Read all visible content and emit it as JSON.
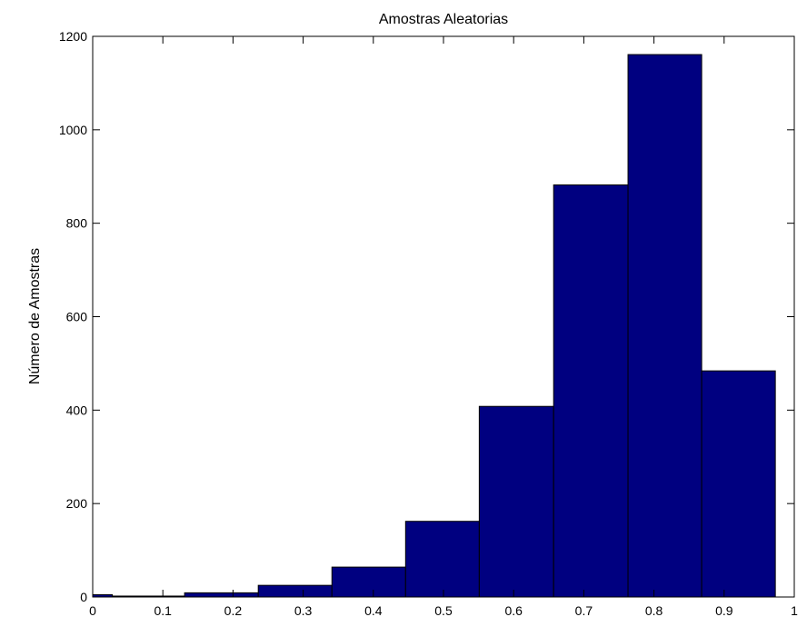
{
  "chart_data": {
    "type": "bar",
    "title": "Amostras Aleatorias",
    "xlabel": "",
    "ylabel": "Número de Amostras",
    "xlim": [
      0,
      1
    ],
    "ylim": [
      0,
      1200
    ],
    "x_ticks": [
      "0",
      "0.1",
      "0.2",
      "0.3",
      "0.4",
      "0.5",
      "0.6",
      "0.7",
      "0.8",
      "0.9",
      "1"
    ],
    "y_ticks": [
      "0",
      "200",
      "400",
      "600",
      "800",
      "1000",
      "1200"
    ],
    "grid": false,
    "legend": "none",
    "bar_color": "#000080",
    "bins": [
      {
        "start": 0.0,
        "end": 0.028,
        "value": 5
      },
      {
        "start": 0.028,
        "end": 0.131,
        "value": 2
      },
      {
        "start": 0.131,
        "end": 0.236,
        "value": 9
      },
      {
        "start": 0.236,
        "end": 0.341,
        "value": 25
      },
      {
        "start": 0.341,
        "end": 0.446,
        "value": 64
      },
      {
        "start": 0.446,
        "end": 0.551,
        "value": 162
      },
      {
        "start": 0.551,
        "end": 0.657,
        "value": 408
      },
      {
        "start": 0.657,
        "end": 0.763,
        "value": 882
      },
      {
        "start": 0.763,
        "end": 0.868,
        "value": 1161
      },
      {
        "start": 0.868,
        "end": 0.973,
        "value": 484
      }
    ]
  }
}
